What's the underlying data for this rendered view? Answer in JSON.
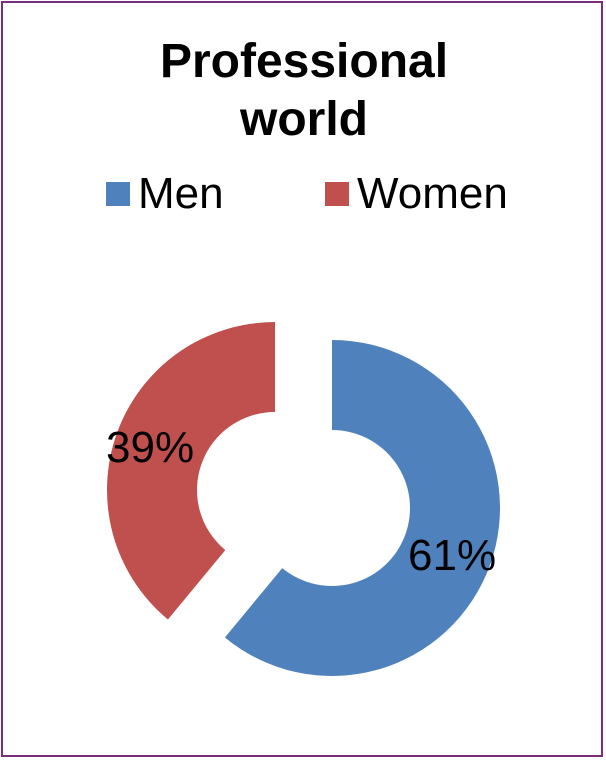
{
  "chart_data": {
    "type": "doughnut",
    "title": "Professional world",
    "title_lines": [
      "Professional",
      "world"
    ],
    "legend_position": "top",
    "series": [
      {
        "name": "Men",
        "value": 61,
        "label": "61%",
        "color": "#4f81bd"
      },
      {
        "name": "Women",
        "value": 39,
        "label": "39%",
        "color": "#c0504d"
      }
    ],
    "exploded": true
  },
  "frame_color": "#7b2c7b"
}
